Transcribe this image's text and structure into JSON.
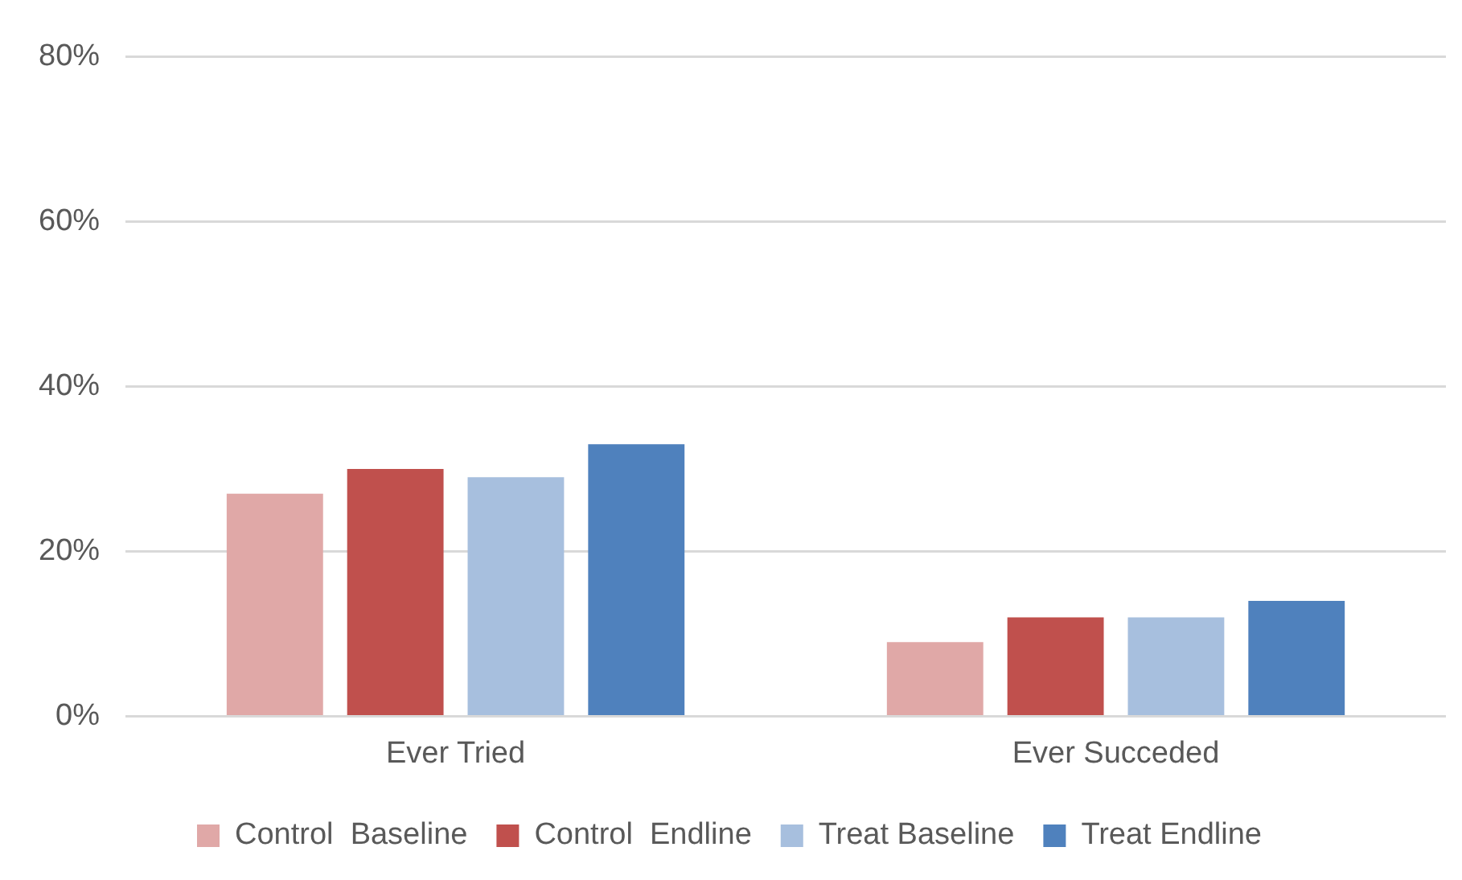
{
  "chart_data": {
    "type": "bar",
    "categories": [
      "Ever Tried",
      "Ever Succeded"
    ],
    "series": [
      {
        "name": "Control  Baseline",
        "color": "#e0a8a7",
        "values": [
          27,
          9
        ]
      },
      {
        "name": "Control  Endline",
        "color": "#c0504d",
        "values": [
          30,
          12
        ]
      },
      {
        "name": "Treat Baseline",
        "color": "#a7bfde",
        "values": [
          29,
          12
        ]
      },
      {
        "name": "Treat Endline",
        "color": "#4f81bd",
        "values": [
          33,
          14
        ]
      }
    ],
    "ylim": [
      0,
      80
    ],
    "yticks": [
      {
        "value": 0,
        "label": "0%"
      },
      {
        "value": 20,
        "label": "20%"
      },
      {
        "value": 40,
        "label": "40%"
      },
      {
        "value": 60,
        "label": "60%"
      },
      {
        "value": 80,
        "label": "80%"
      }
    ],
    "grid": "y",
    "legend": "bottom"
  }
}
